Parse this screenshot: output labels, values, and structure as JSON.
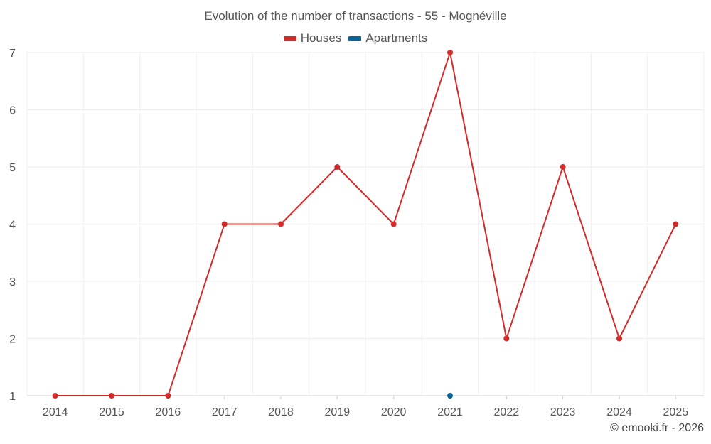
{
  "chart_data": {
    "type": "line",
    "title": "Evolution of the number of transactions - 55 - Mognéville",
    "categories": [
      "2014",
      "2015",
      "2016",
      "2017",
      "2018",
      "2019",
      "2020",
      "2021",
      "2022",
      "2023",
      "2024",
      "2025"
    ],
    "series": [
      {
        "name": "Houses",
        "color": "#d32a2a",
        "values": [
          1,
          1,
          1,
          4,
          4,
          5,
          4,
          7,
          2,
          5,
          2,
          4
        ]
      },
      {
        "name": "Apartments",
        "color": "#0a6699",
        "values": [
          null,
          null,
          null,
          null,
          null,
          null,
          null,
          1,
          null,
          null,
          null,
          null
        ]
      }
    ],
    "yticks": [
      1,
      2,
      3,
      4,
      5,
      6,
      7
    ],
    "ylim": [
      1,
      7
    ],
    "grid": true,
    "legend_position": "top-center"
  },
  "credit": "© emooki.fr - 2026"
}
